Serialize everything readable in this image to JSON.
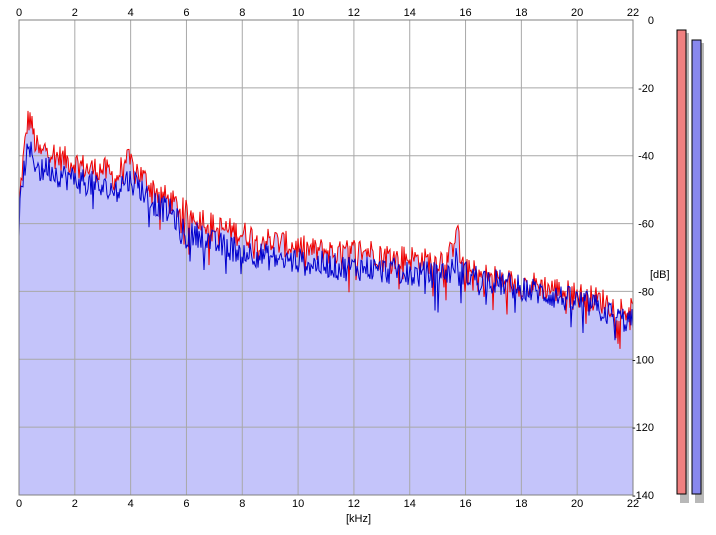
{
  "chart_data": {
    "type": "area",
    "xlabel": "[kHz]",
    "ylabel": "[dB]",
    "xlim": [
      0,
      22
    ],
    "ylim": [
      -140,
      0
    ],
    "x_ticks": [
      0,
      2,
      4,
      6,
      8,
      10,
      12,
      14,
      16,
      18,
      20,
      22
    ],
    "y_ticks": [
      0,
      -20,
      -40,
      -60,
      -80,
      -100,
      -120,
      -140
    ],
    "x_tick_labels": [
      "0",
      "2",
      "4",
      "6",
      "8",
      "10",
      "12",
      "14",
      "16",
      "18",
      "20",
      "22"
    ],
    "y_tick_labels": [
      "0",
      "-20",
      "-40",
      "-60",
      "-80",
      "-100",
      "-120",
      "-140"
    ],
    "grid": true,
    "colors": {
      "left": "#ee0000",
      "right": "#0000cc",
      "fill": "#c4c4fa",
      "grid": "#a8a8a8",
      "meter_left": "#f08080",
      "meter_right": "#8888ee"
    },
    "series": [
      {
        "x": [
          0,
          0.1,
          0.2,
          0.3,
          0.4,
          0.6,
          0.8,
          1.0,
          1.3,
          1.6,
          2.0,
          2.5,
          3.0,
          3.5,
          3.8,
          4.2,
          4.6,
          5.0,
          5.5,
          6.0,
          6.5,
          7.0,
          7.5,
          8.0,
          8.5,
          9.0,
          9.5,
          10.0,
          10.5,
          11.0,
          11.5,
          12.0,
          12.5,
          13.0,
          13.5,
          14.0,
          14.5,
          15.0,
          15.5,
          15.7,
          15.8,
          16.0,
          16.5,
          17.0,
          17.5,
          18.0,
          18.5,
          19.0,
          19.5,
          20.0,
          20.5,
          21.0,
          21.5,
          22.0
        ],
        "values": [
          -56,
          -45,
          -38,
          -30,
          -29,
          -37,
          -40,
          -37,
          -40,
          -41,
          -42,
          -44,
          -44,
          -47,
          -41,
          -44,
          -48,
          -51,
          -54,
          -57,
          -58,
          -61,
          -62,
          -63,
          -64,
          -65,
          -66,
          -67,
          -68,
          -68,
          -69,
          -68,
          -68,
          -69,
          -70,
          -70,
          -71,
          -71,
          -69,
          -58,
          -70,
          -74,
          -75,
          -76,
          -77,
          -78,
          -78,
          -79,
          -80,
          -81,
          -82,
          -83,
          -85,
          -86
        ]
      },
      {
        "x": [
          0,
          0.1,
          0.2,
          0.3,
          0.4,
          0.6,
          0.8,
          1.0,
          1.3,
          1.6,
          2.0,
          2.5,
          3.0,
          3.5,
          3.8,
          4.2,
          4.6,
          5.0,
          5.5,
          6.0,
          6.5,
          7.0,
          7.5,
          8.0,
          8.5,
          9.0,
          9.5,
          10.0,
          10.5,
          11.0,
          11.5,
          12.0,
          12.5,
          13.0,
          13.5,
          14.0,
          14.5,
          15.0,
          15.5,
          15.7,
          15.8,
          16.0,
          16.5,
          17.0,
          17.5,
          18.0,
          18.5,
          19.0,
          19.5,
          20.0,
          20.5,
          21.0,
          21.5,
          22.0
        ],
        "values": [
          -60,
          -49,
          -43,
          -40,
          -39,
          -42,
          -45,
          -43,
          -45,
          -46,
          -47,
          -48,
          -50,
          -50,
          -47,
          -48,
          -52,
          -55,
          -57,
          -64,
          -63,
          -66,
          -67,
          -68,
          -69,
          -70,
          -71,
          -71,
          -72,
          -72,
          -73,
          -73,
          -73,
          -74,
          -74,
          -75,
          -75,
          -75,
          -74,
          -70,
          -73,
          -75,
          -76,
          -77,
          -78,
          -79,
          -80,
          -81,
          -82,
          -83,
          -84,
          -86,
          -88,
          -89
        ]
      }
    ],
    "meters": [
      {
        "value": -141
      },
      {
        "value": -141
      }
    ]
  }
}
